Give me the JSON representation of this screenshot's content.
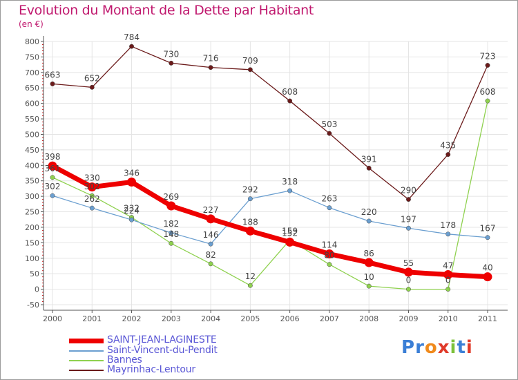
{
  "header": {
    "title": "Evolution du Montant de la Dette par Habitant",
    "unit": "(en €)"
  },
  "colors": {
    "title": "#c0186e",
    "axis": "#555555",
    "grid": "#e4e4e4",
    "label": "#444444",
    "legend_text": "#5a57d6"
  },
  "logo": {
    "text": "Proxiti"
  },
  "chart_data": {
    "type": "line",
    "title": "Evolution du Montant de la Dette par Habitant",
    "ylabel": "(en €)",
    "xlabel": "",
    "x": [
      "2000",
      "2001",
      "2002",
      "2003",
      "2004",
      "2005",
      "2006",
      "2007",
      "2008",
      "2009",
      "2010",
      "2011"
    ],
    "ylim": [
      -50,
      800
    ],
    "yticks": [
      -50,
      0,
      50,
      100,
      150,
      200,
      250,
      300,
      350,
      400,
      450,
      500,
      550,
      600,
      650,
      700,
      750,
      800
    ],
    "grid": true,
    "legend_position": "bottom-left",
    "series": [
      {
        "name": "SAINT-JEAN-LAGINESTE",
        "color": "#ee0000",
        "key": "main",
        "values": [
          398,
          330,
          346,
          269,
          227,
          188,
          152,
          114,
          86,
          55,
          47,
          40
        ]
      },
      {
        "name": "Saint-Vincent-du-Pendit",
        "color": "#6b9fd0",
        "key": "svp",
        "values": [
          302,
          262,
          224,
          182,
          146,
          292,
          318,
          263,
          220,
          197,
          178,
          167
        ]
      },
      {
        "name": "Bannes",
        "color": "#8fd14f",
        "key": "bannes",
        "values": [
          361,
          302,
          232,
          148,
          82,
          12,
          159,
          80,
          10,
          0,
          0,
          608
        ]
      },
      {
        "name": "Mayrinhac-Lentour",
        "color": "#6b1a1a",
        "key": "mayr",
        "values": [
          663,
          652,
          784,
          730,
          716,
          709,
          608,
          503,
          391,
          290,
          435,
          723
        ]
      }
    ],
    "labels_shown": {
      "main": [
        "398",
        "330",
        "346",
        "269",
        "227",
        "188",
        "152",
        "114",
        "86",
        "55",
        "47",
        "40"
      ],
      "svp": [
        "302",
        "262",
        "224",
        "182",
        "146",
        "292",
        "318",
        "263",
        "220",
        "197",
        "178",
        "167"
      ],
      "bannes": [
        "361",
        "302",
        "232",
        "148",
        "82",
        "12",
        "159",
        "80",
        "10",
        "0",
        "0",
        "608"
      ],
      "mayr": [
        "663",
        "652",
        "784",
        "730",
        "716",
        "709",
        "608",
        "503",
        "391",
        "290",
        "435",
        "723"
      ]
    }
  },
  "legend": {
    "items": [
      {
        "label": "SAINT-JEAN-LAGINESTE"
      },
      {
        "label": "Saint-Vincent-du-Pendit"
      },
      {
        "label": "Bannes"
      },
      {
        "label": "Mayrinhac-Lentour"
      }
    ]
  }
}
